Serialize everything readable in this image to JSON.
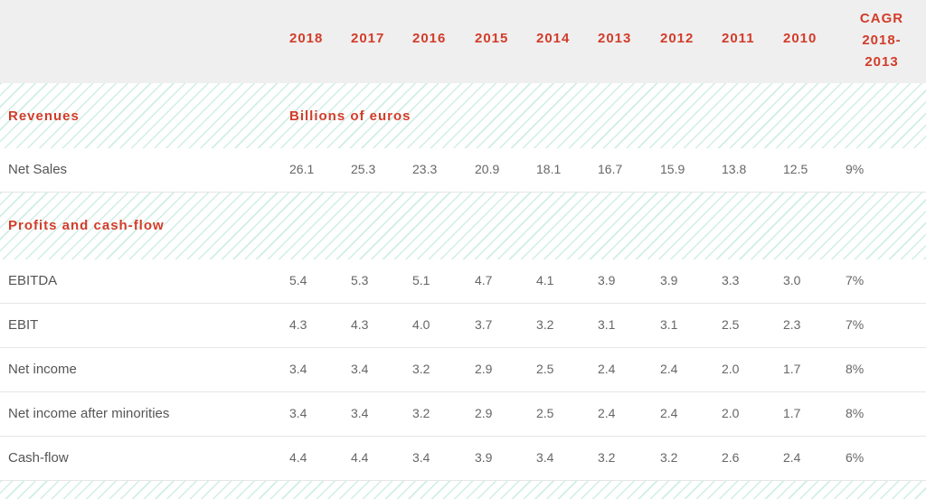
{
  "years": [
    "2018",
    "2017",
    "2016",
    "2015",
    "2014",
    "2013",
    "2012",
    "2011",
    "2010"
  ],
  "cagr_header": [
    "CAGR",
    "2018-",
    "2013"
  ],
  "sections": {
    "revenues": {
      "title": "Revenues",
      "unit": "Billions of euros"
    },
    "profits": {
      "title": "Profits and cash-flow"
    }
  },
  "rows": {
    "net_sales": {
      "label": "Net Sales",
      "values": [
        "26.1",
        "25.3",
        "23.3",
        "20.9",
        "18.1",
        "16.7",
        "15.9",
        "13.8",
        "12.5",
        "9%"
      ]
    },
    "ebitda": {
      "label": "EBITDA",
      "values": [
        "5.4",
        "5.3",
        "5.1",
        "4.7",
        "4.1",
        "3.9",
        "3.9",
        "3.3",
        "3.0",
        "7%"
      ]
    },
    "ebit": {
      "label": "EBIT",
      "values": [
        "4.3",
        "4.3",
        "4.0",
        "3.7",
        "3.2",
        "3.1",
        "3.1",
        "2.5",
        "2.3",
        "7%"
      ]
    },
    "net_income": {
      "label": "Net income",
      "values": [
        "3.4",
        "3.4",
        "3.2",
        "2.9",
        "2.5",
        "2.4",
        "2.4",
        "2.0",
        "1.7",
        "8%"
      ]
    },
    "net_income_after": {
      "label": "Net income after minorities",
      "values": [
        "3.4",
        "3.4",
        "3.2",
        "2.9",
        "2.5",
        "2.4",
        "2.4",
        "2.0",
        "1.7",
        "8%"
      ]
    },
    "cash_flow": {
      "label": "Cash-flow",
      "values": [
        "4.4",
        "4.4",
        "3.4",
        "3.9",
        "3.4",
        "3.2",
        "3.2",
        "2.6",
        "2.4",
        "6%"
      ]
    }
  },
  "colors": {
    "accent": "#d23c2a",
    "stripe": "#cfeee6",
    "header_bg": "#efefef"
  }
}
